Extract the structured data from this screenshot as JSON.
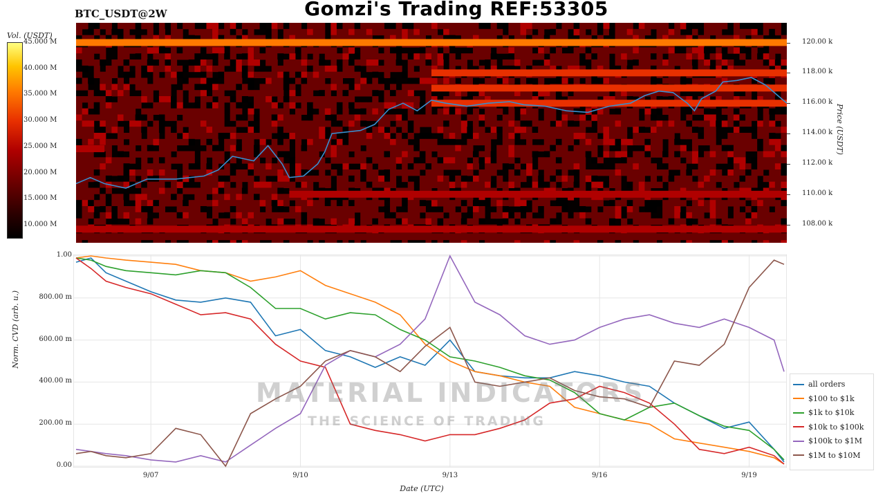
{
  "header": {
    "title": "Gomzi's Trading REF:53305",
    "pair": "BTC_USDT@2W"
  },
  "colorbar": {
    "title": "Vol. (USDT)",
    "ticks": [
      "45.000 M",
      "40.000 M",
      "35.000 M",
      "30.000 M",
      "25.000 M",
      "20.000 M",
      "15.000 M",
      "10.000 M"
    ],
    "colors": [
      "#000000",
      "#6a0000",
      "#b00000",
      "#e83000",
      "#ff7a00",
      "#ffc400",
      "#ffff80"
    ]
  },
  "watermark": {
    "line1": "MATERIAL INDICATORS",
    "line2": "THE SCIENCE OF TRADING"
  },
  "chart_data": [
    {
      "type": "heatmap",
      "title": "",
      "ylabel": "Price (USDT)",
      "y_ticks": [
        "120.00 k",
        "118.00 k",
        "116.00 k",
        "114.00 k",
        "112.00 k",
        "110.00 k",
        "108.00 k"
      ],
      "ylim": [
        106800,
        121300
      ],
      "xlim": [
        "2025-09-05 12:00",
        "2025-09-19 16:00"
      ],
      "price_line_color": "#3a8fd0",
      "price_series": [
        {
          "t": 0.0,
          "p": 110700
        },
        {
          "t": 0.02,
          "p": 111100
        },
        {
          "t": 0.04,
          "p": 110700
        },
        {
          "t": 0.07,
          "p": 110400
        },
        {
          "t": 0.1,
          "p": 111000
        },
        {
          "t": 0.14,
          "p": 111000
        },
        {
          "t": 0.18,
          "p": 111200
        },
        {
          "t": 0.2,
          "p": 111600
        },
        {
          "t": 0.22,
          "p": 112500
        },
        {
          "t": 0.25,
          "p": 112200
        },
        {
          "t": 0.27,
          "p": 113200
        },
        {
          "t": 0.29,
          "p": 112000
        },
        {
          "t": 0.3,
          "p": 111100
        },
        {
          "t": 0.32,
          "p": 111200
        },
        {
          "t": 0.34,
          "p": 112000
        },
        {
          "t": 0.35,
          "p": 112800
        },
        {
          "t": 0.36,
          "p": 114000
        },
        {
          "t": 0.38,
          "p": 114100
        },
        {
          "t": 0.4,
          "p": 114200
        },
        {
          "t": 0.42,
          "p": 114600
        },
        {
          "t": 0.44,
          "p": 115600
        },
        {
          "t": 0.46,
          "p": 116000
        },
        {
          "t": 0.48,
          "p": 115500
        },
        {
          "t": 0.5,
          "p": 116200
        },
        {
          "t": 0.52,
          "p": 116000
        },
        {
          "t": 0.55,
          "p": 115800
        },
        {
          "t": 0.58,
          "p": 116000
        },
        {
          "t": 0.61,
          "p": 116100
        },
        {
          "t": 0.63,
          "p": 115900
        },
        {
          "t": 0.66,
          "p": 115800
        },
        {
          "t": 0.69,
          "p": 115500
        },
        {
          "t": 0.72,
          "p": 115400
        },
        {
          "t": 0.75,
          "p": 115800
        },
        {
          "t": 0.78,
          "p": 116000
        },
        {
          "t": 0.8,
          "p": 116500
        },
        {
          "t": 0.82,
          "p": 116800
        },
        {
          "t": 0.84,
          "p": 116700
        },
        {
          "t": 0.86,
          "p": 116000
        },
        {
          "t": 0.87,
          "p": 115500
        },
        {
          "t": 0.88,
          "p": 116300
        },
        {
          "t": 0.9,
          "p": 116800
        },
        {
          "t": 0.91,
          "p": 117400
        },
        {
          "t": 0.93,
          "p": 117500
        },
        {
          "t": 0.95,
          "p": 117700
        },
        {
          "t": 0.97,
          "p": 117200
        },
        {
          "t": 0.99,
          "p": 116400
        },
        {
          "t": 1.0,
          "p": 116000
        }
      ],
      "liquidity_bands": [
        {
          "price": 120000,
          "intensity": 0.65,
          "start": 0.0,
          "end": 1.0
        },
        {
          "price": 118000,
          "intensity": 0.5,
          "start": 0.5,
          "end": 1.0
        },
        {
          "price": 117000,
          "intensity": 0.55,
          "start": 0.5,
          "end": 1.0
        },
        {
          "price": 116000,
          "intensity": 0.45,
          "start": 0.5,
          "end": 1.0
        },
        {
          "price": 113000,
          "intensity": 0.4,
          "start": 0.0,
          "end": 0.04
        },
        {
          "price": 110000,
          "intensity": 0.25,
          "start": 0.3,
          "end": 1.0
        },
        {
          "price": 107700,
          "intensity": 0.25,
          "start": 0.0,
          "end": 1.0
        },
        {
          "price": 107200,
          "intensity": 0.2,
          "start": 0.0,
          "end": 1.0
        }
      ]
    },
    {
      "type": "line",
      "title": "",
      "xlabel": "Date (UTC)",
      "ylabel": "Norm. CVD (arb. u.)",
      "ylim": [
        0,
        1
      ],
      "y_ticks": [
        {
          "value": 0.0,
          "label": "0.00"
        },
        {
          "value": 0.2,
          "label": "200.00 m"
        },
        {
          "value": 0.4,
          "label": "400.00 m"
        },
        {
          "value": 0.6,
          "label": "600.00 m"
        },
        {
          "value": 0.8,
          "label": "800.00 m"
        },
        {
          "value": 1.0,
          "label": "1.00"
        }
      ],
      "xlim": [
        0,
        14.2
      ],
      "x_ticks": [
        {
          "value": 1.5,
          "label": "9/07"
        },
        {
          "value": 4.5,
          "label": "9/10"
        },
        {
          "value": 7.5,
          "label": "9/13"
        },
        {
          "value": 10.5,
          "label": "9/16"
        },
        {
          "value": 13.5,
          "label": "9/19"
        }
      ],
      "legend_position": "bottom-right",
      "x": [
        0,
        0.3,
        0.6,
        1.0,
        1.5,
        2.0,
        2.5,
        3.0,
        3.5,
        4.0,
        4.5,
        5.0,
        5.5,
        6.0,
        6.5,
        7.0,
        7.5,
        8.0,
        8.5,
        9.0,
        9.5,
        10.0,
        10.5,
        11.0,
        11.5,
        12.0,
        12.5,
        13.0,
        13.5,
        14.0,
        14.2
      ],
      "series": [
        {
          "name": "all orders",
          "color": "#1f77b4",
          "values": [
            0.97,
            0.99,
            0.92,
            0.88,
            0.83,
            0.79,
            0.78,
            0.8,
            0.78,
            0.62,
            0.65,
            0.55,
            0.52,
            0.47,
            0.52,
            0.48,
            0.6,
            0.45,
            0.43,
            0.42,
            0.42,
            0.45,
            0.43,
            0.4,
            0.38,
            0.3,
            0.24,
            0.18,
            0.21,
            0.08,
            0.02
          ]
        },
        {
          "name": "$100 to $1k",
          "color": "#ff7f0e",
          "values": [
            0.99,
            1.0,
            0.99,
            0.98,
            0.97,
            0.96,
            0.93,
            0.92,
            0.88,
            0.9,
            0.93,
            0.86,
            0.82,
            0.78,
            0.72,
            0.58,
            0.5,
            0.45,
            0.43,
            0.4,
            0.38,
            0.28,
            0.25,
            0.22,
            0.2,
            0.13,
            0.11,
            0.09,
            0.07,
            0.04,
            0.01
          ]
        },
        {
          "name": "$1k to $10k",
          "color": "#2ca02c",
          "values": [
            0.99,
            0.98,
            0.95,
            0.93,
            0.92,
            0.91,
            0.93,
            0.92,
            0.85,
            0.75,
            0.75,
            0.7,
            0.73,
            0.72,
            0.65,
            0.6,
            0.52,
            0.5,
            0.47,
            0.43,
            0.41,
            0.35,
            0.25,
            0.22,
            0.28,
            0.3,
            0.24,
            0.19,
            0.17,
            0.08,
            0.03
          ]
        },
        {
          "name": "$10k to $100k",
          "color": "#d62728",
          "values": [
            0.99,
            0.94,
            0.88,
            0.85,
            0.82,
            0.77,
            0.72,
            0.73,
            0.7,
            0.58,
            0.5,
            0.47,
            0.2,
            0.17,
            0.15,
            0.12,
            0.15,
            0.15,
            0.18,
            0.22,
            0.3,
            0.32,
            0.38,
            0.35,
            0.3,
            0.2,
            0.08,
            0.06,
            0.09,
            0.05,
            0.01
          ]
        },
        {
          "name": "$100k to $1M",
          "color": "#9467bd",
          "values": [
            0.08,
            0.07,
            0.06,
            0.05,
            0.03,
            0.02,
            0.05,
            0.02,
            0.1,
            0.18,
            0.25,
            0.48,
            0.55,
            0.52,
            0.58,
            0.7,
            1.0,
            0.78,
            0.72,
            0.62,
            0.58,
            0.6,
            0.66,
            0.7,
            0.72,
            0.68,
            0.66,
            0.7,
            0.66,
            0.6,
            0.45
          ]
        },
        {
          "name": "$1M to $10M",
          "color": "#8c564b",
          "values": [
            0.06,
            0.07,
            0.05,
            0.04,
            0.06,
            0.18,
            0.15,
            0.0,
            0.25,
            0.32,
            0.38,
            0.5,
            0.55,
            0.52,
            0.45,
            0.57,
            0.66,
            0.4,
            0.38,
            0.4,
            0.42,
            0.36,
            0.33,
            0.32,
            0.28,
            0.5,
            0.48,
            0.58,
            0.85,
            0.98,
            0.96
          ]
        }
      ]
    }
  ]
}
